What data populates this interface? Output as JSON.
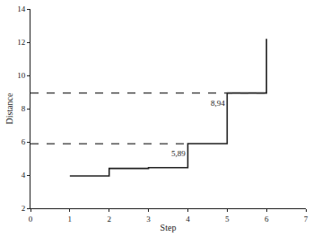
{
  "chart_data": {
    "type": "line",
    "x_label": "Step",
    "y_label": "Distance",
    "xlim": [
      0,
      7
    ],
    "xticks": [
      0,
      1,
      2,
      3,
      4,
      5,
      6,
      7
    ],
    "ylim": [
      2,
      14
    ],
    "yticks": [
      2,
      4,
      6,
      8,
      10,
      12,
      14
    ],
    "grid": false,
    "series": [
      {
        "type": "step",
        "color": "#222222",
        "line_style": "solid",
        "x": [
          1,
          2,
          3,
          4,
          5,
          6
        ],
        "values": [
          3.95,
          4.4,
          4.45,
          5.89,
          8.94,
          12.2
        ]
      },
      {
        "type": "line",
        "color": "#333333",
        "line_style": "dashed",
        "x": [
          0,
          6
        ],
        "values": [
          8.94,
          8.94
        ]
      },
      {
        "type": "line",
        "color": "#333333",
        "line_style": "dashed",
        "x": [
          0,
          4
        ],
        "values": [
          5.89,
          5.89
        ]
      }
    ],
    "annotations": [
      {
        "text": "8,94",
        "x": 5,
        "y": 8.3
      },
      {
        "text": "5,89",
        "x": 4,
        "y": 5.3
      }
    ]
  }
}
